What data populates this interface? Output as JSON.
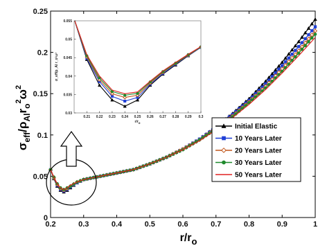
{
  "chart_data": [
    {
      "type": "line",
      "xlabel_main": "r/r",
      "xlabel_sub": "o",
      "ylabel_parts": {
        "sigma": "σ",
        "eff": "eff",
        "slash_rho": "/ρ",
        "al": "Al",
        "r": "r",
        "o": "o",
        "sq1": "2",
        "omega": "ω",
        "sq2": "2"
      },
      "xlim": [
        0.2,
        1.0
      ],
      "ylim": [
        0,
        0.25
      ],
      "xticks": [
        "0.2",
        "0.3",
        "0.4",
        "0.5",
        "0.6",
        "0.7",
        "0.8",
        "0.9",
        "1"
      ],
      "yticks": [
        "0",
        "0.05",
        "0.1",
        "0.15",
        "0.2",
        "0.25"
      ],
      "x": [
        0.2,
        0.21,
        0.22,
        0.23,
        0.24,
        0.25,
        0.26,
        0.28,
        0.3,
        0.35,
        0.4,
        0.45,
        0.5,
        0.55,
        0.6,
        0.65,
        0.7,
        0.75,
        0.8,
        0.85,
        0.9,
        0.95,
        1.0
      ],
      "series": [
        {
          "name": "Initial Elastic",
          "color": "#000000",
          "marker": "triangle",
          "values": [
            0.058,
            0.047,
            0.038,
            0.033,
            0.031,
            0.033,
            0.036,
            0.042,
            0.046,
            0.05,
            0.054,
            0.058,
            0.065,
            0.073,
            0.083,
            0.095,
            0.11,
            0.126,
            0.144,
            0.165,
            0.188,
            0.213,
            0.24
          ]
        },
        {
          "name": "10 Years Later",
          "color": "#1f3fd6",
          "marker": "square",
          "values": [
            0.058,
            0.048,
            0.039,
            0.034,
            0.032,
            0.034,
            0.037,
            0.042,
            0.046,
            0.05,
            0.054,
            0.058,
            0.065,
            0.073,
            0.083,
            0.095,
            0.109,
            0.125,
            0.142,
            0.162,
            0.184,
            0.207,
            0.231
          ]
        },
        {
          "name": "20 Years Later",
          "color": "#c1561b",
          "marker": "diamond",
          "values": [
            0.058,
            0.048,
            0.04,
            0.035,
            0.033,
            0.035,
            0.038,
            0.043,
            0.046,
            0.05,
            0.054,
            0.058,
            0.065,
            0.073,
            0.083,
            0.094,
            0.108,
            0.123,
            0.14,
            0.159,
            0.18,
            0.202,
            0.226
          ]
        },
        {
          "name": "30 Years Later",
          "color": "#1f8a2c",
          "marker": "dot",
          "values": [
            0.058,
            0.049,
            0.041,
            0.036,
            0.034,
            0.036,
            0.038,
            0.043,
            0.046,
            0.05,
            0.054,
            0.058,
            0.065,
            0.073,
            0.082,
            0.094,
            0.107,
            0.122,
            0.139,
            0.157,
            0.177,
            0.199,
            0.222
          ]
        },
        {
          "name": "50 Years Later",
          "color": "#e02020",
          "marker": "none",
          "values": [
            0.058,
            0.049,
            0.041,
            0.036,
            0.034,
            0.036,
            0.039,
            0.043,
            0.046,
            0.05,
            0.054,
            0.058,
            0.065,
            0.073,
            0.082,
            0.093,
            0.106,
            0.121,
            0.137,
            0.155,
            0.175,
            0.196,
            0.218
          ]
        }
      ],
      "legend_position": "right, middle",
      "grid": false
    },
    {
      "type": "line",
      "role": "inset (zoom of circled region)",
      "xlabel": "r/r",
      "xlabel_sub": "o",
      "ylabel": "σ_eff/ρ_Al r_o²ω²",
      "xlim": [
        0.2,
        0.3
      ],
      "ylim": [
        0.03,
        0.055
      ],
      "xticks": [
        "0.21",
        "0.22",
        "0.23",
        "0.24",
        "0.25",
        "0.26",
        "0.27",
        "0.28",
        "0.29",
        "0.3"
      ],
      "yticks": [
        "0.03",
        "0.035",
        "0.04",
        "0.045",
        "0.05",
        "0.055"
      ],
      "x": [
        0.2,
        0.21,
        0.22,
        0.23,
        0.24,
        0.25,
        0.26,
        0.27,
        0.28,
        0.29,
        0.3
      ],
      "series": [
        {
          "name": "Initial Elastic",
          "color": "#000000",
          "marker": "triangle",
          "values": [
            0.0555,
            0.0445,
            0.0375,
            0.0335,
            0.0318,
            0.0335,
            0.0375,
            0.0405,
            0.043,
            0.0455,
            0.0478
          ]
        },
        {
          "name": "10 Years Later",
          "color": "#1f3fd6",
          "marker": "square",
          "values": [
            0.0555,
            0.0448,
            0.0385,
            0.0345,
            0.0332,
            0.0342,
            0.0378,
            0.0407,
            0.0432,
            0.0456,
            0.0478
          ]
        },
        {
          "name": "20 Years Later",
          "color": "#c1561b",
          "marker": "diamond",
          "values": [
            0.0555,
            0.0452,
            0.039,
            0.0352,
            0.0342,
            0.0348,
            0.0381,
            0.041,
            0.0434,
            0.0457,
            0.0479
          ]
        },
        {
          "name": "30 Years Later",
          "color": "#1f8a2c",
          "marker": "dot",
          "values": [
            0.0555,
            0.0455,
            0.0395,
            0.0358,
            0.0348,
            0.0353,
            0.0384,
            0.0412,
            0.0435,
            0.0458,
            0.0479
          ]
        },
        {
          "name": "50 Years Later",
          "color": "#e02020",
          "marker": "none",
          "values": [
            0.0555,
            0.0458,
            0.04,
            0.0362,
            0.0352,
            0.0357,
            0.0386,
            0.0414,
            0.0437,
            0.0459,
            0.048
          ]
        }
      ],
      "inset_ytick_labels_visible": false,
      "grid": false
    }
  ]
}
